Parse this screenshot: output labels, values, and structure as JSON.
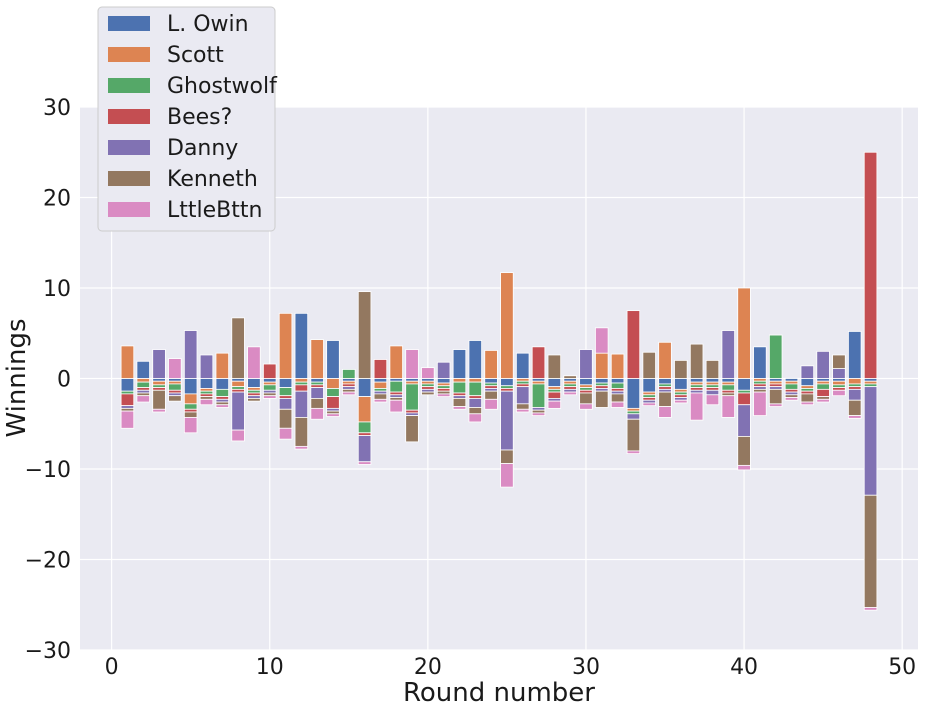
{
  "chart_data": {
    "type": "bar",
    "stacking": "diverging",
    "xlabel": "Round number",
    "ylabel": "Winnings",
    "xlim": [
      -2,
      51
    ],
    "ylim": [
      -30,
      30
    ],
    "x_ticks": [
      0,
      10,
      20,
      30,
      40,
      50
    ],
    "y_ticks": [
      -30,
      -20,
      -10,
      0,
      10,
      20,
      30
    ],
    "x_tick_labels": [
      "0",
      "10",
      "20",
      "30",
      "40",
      "50"
    ],
    "y_tick_labels": [
      "−30",
      "−20",
      "−10",
      "0",
      "10",
      "20",
      "30"
    ],
    "grid": true,
    "legend_position": "top-left",
    "x": [
      1,
      2,
      3,
      4,
      5,
      6,
      7,
      8,
      9,
      10,
      11,
      12,
      13,
      14,
      15,
      16,
      17,
      18,
      19,
      20,
      21,
      22,
      23,
      24,
      25,
      26,
      27,
      28,
      29,
      30,
      31,
      32,
      33,
      34,
      35,
      36,
      37,
      38,
      39,
      40,
      41,
      42,
      43,
      44,
      45,
      46,
      47,
      48
    ],
    "series": [
      {
        "name": "L. Owin",
        "color": "#4c72b0",
        "values": [
          -1.4,
          1.9,
          -0.3,
          -0.3,
          -1.7,
          -1.1,
          -1.2,
          -0.3,
          -1.0,
          -0.4,
          -1.0,
          7.2,
          -0.4,
          4.2,
          -0.3,
          -2.0,
          -0.4,
          -0.3,
          -0.3,
          -0.3,
          -0.5,
          3.2,
          4.2,
          -0.5,
          -0.8,
          2.8,
          -0.3,
          -0.9,
          -0.3,
          -0.7,
          -0.5,
          -0.5,
          -3.3,
          -1.5,
          -0.6,
          -1.2,
          -0.4,
          -0.4,
          -0.4,
          -1.3,
          3.5,
          -0.3,
          -0.3,
          -0.8,
          -0.3,
          -0.3,
          5.2,
          -0.3
        ]
      },
      {
        "name": "Scott",
        "color": "#dd8452",
        "values": [
          3.6,
          -0.4,
          -0.4,
          -0.3,
          -1.1,
          -0.3,
          2.8,
          -0.6,
          -0.3,
          -0.3,
          7.2,
          -0.4,
          4.3,
          -1.1,
          -0.3,
          -2.8,
          -0.7,
          3.6,
          -0.3,
          -0.3,
          -0.3,
          -0.4,
          -0.4,
          3.1,
          11.7,
          -0.3,
          -0.3,
          -0.3,
          -0.3,
          -0.3,
          2.8,
          2.7,
          -0.3,
          -0.3,
          4.0,
          -0.3,
          -0.3,
          -0.3,
          -0.3,
          10.0,
          -0.3,
          -0.3,
          -0.3,
          -0.3,
          -0.3,
          -0.4,
          -0.6,
          -0.3
        ]
      },
      {
        "name": "Ghostwolf",
        "color": "#55a868",
        "values": [
          -0.3,
          -0.6,
          -0.3,
          -0.7,
          -0.6,
          -0.3,
          -0.8,
          -0.3,
          -0.3,
          -0.6,
          -0.9,
          -0.3,
          -0.3,
          -0.9,
          1.0,
          -1.2,
          -0.3,
          -1.2,
          -2.9,
          -0.3,
          -0.3,
          -1.2,
          -1.5,
          -0.3,
          -0.3,
          -0.3,
          -2.6,
          -0.3,
          -0.3,
          -0.3,
          -0.3,
          -0.6,
          -0.3,
          -0.3,
          -0.3,
          -0.3,
          -0.3,
          -0.3,
          -0.6,
          -0.3,
          -0.3,
          4.8,
          -0.6,
          -0.3,
          -0.6,
          -0.3,
          -0.3,
          -0.3
        ]
      },
      {
        "name": "Bees?",
        "color": "#c44e52",
        "values": [
          -1.3,
          -0.3,
          -0.3,
          -0.3,
          -0.3,
          -0.3,
          -0.3,
          -0.3,
          -0.3,
          1.6,
          -0.3,
          -0.7,
          -0.3,
          -1.3,
          -0.3,
          -0.3,
          2.1,
          -0.3,
          -0.3,
          -0.3,
          -0.3,
          -0.3,
          -0.3,
          -0.3,
          -0.3,
          -0.3,
          3.5,
          -0.7,
          -0.3,
          -0.3,
          -0.3,
          -0.3,
          7.5,
          -0.3,
          -0.3,
          -0.3,
          -0.3,
          -0.3,
          -0.3,
          -1.3,
          -0.3,
          -0.3,
          -0.3,
          -0.3,
          -0.8,
          -0.3,
          -0.3,
          25.0
        ]
      },
      {
        "name": "Danny",
        "color": "#8172b3",
        "values": [
          -0.3,
          -0.3,
          3.2,
          -0.3,
          5.3,
          2.6,
          -0.3,
          -4.2,
          -0.3,
          -0.3,
          -1.2,
          -2.9,
          -1.2,
          -0.3,
          -0.3,
          -2.9,
          -0.3,
          -0.3,
          -0.3,
          -0.3,
          1.8,
          -0.3,
          -1.0,
          -0.3,
          -6.5,
          -1.9,
          -0.3,
          -0.3,
          -0.3,
          3.2,
          -0.3,
          -0.3,
          -0.6,
          -0.3,
          -0.3,
          -0.3,
          -0.3,
          -0.5,
          5.3,
          -3.5,
          -0.3,
          -0.3,
          -0.3,
          1.4,
          3.0,
          1.1,
          -1.2,
          -12.0
        ]
      },
      {
        "name": "Kenneth",
        "color": "#937860",
        "values": [
          -0.3,
          -0.3,
          -2.1,
          -0.6,
          -0.6,
          -0.3,
          -0.3,
          6.7,
          -0.3,
          -0.3,
          -2.1,
          -3.2,
          -1.1,
          -0.3,
          -0.3,
          9.6,
          -0.6,
          -0.3,
          -2.9,
          -0.3,
          -0.3,
          -0.9,
          -0.7,
          -0.9,
          -1.5,
          -0.6,
          -0.3,
          2.6,
          0.3,
          -1.2,
          -1.8,
          -0.9,
          -3.5,
          2.9,
          -1.6,
          2.0,
          3.8,
          2.0,
          -0.3,
          -3.2,
          -0.3,
          -1.6,
          -0.3,
          -0.9,
          -0.3,
          1.5,
          -1.7,
          -12.4
        ]
      },
      {
        "name": "LttleBttn",
        "color": "#da8bc3",
        "values": [
          -1.9,
          -0.7,
          -0.3,
          2.2,
          -1.7,
          -0.6,
          -0.3,
          -1.2,
          3.5,
          -0.3,
          -1.2,
          -0.3,
          -1.2,
          -0.3,
          -0.3,
          -0.3,
          -0.3,
          -1.3,
          3.2,
          1.2,
          -0.3,
          -0.3,
          -0.9,
          -1.1,
          -2.6,
          -0.3,
          -0.3,
          -0.8,
          -0.3,
          -0.6,
          2.8,
          -0.6,
          -0.3,
          -0.3,
          -1.2,
          -0.3,
          -3.0,
          -1.1,
          -2.4,
          -0.5,
          -2.6,
          -0.3,
          -0.3,
          -0.3,
          -0.3,
          -0.6,
          -0.3,
          -0.3
        ]
      }
    ]
  }
}
